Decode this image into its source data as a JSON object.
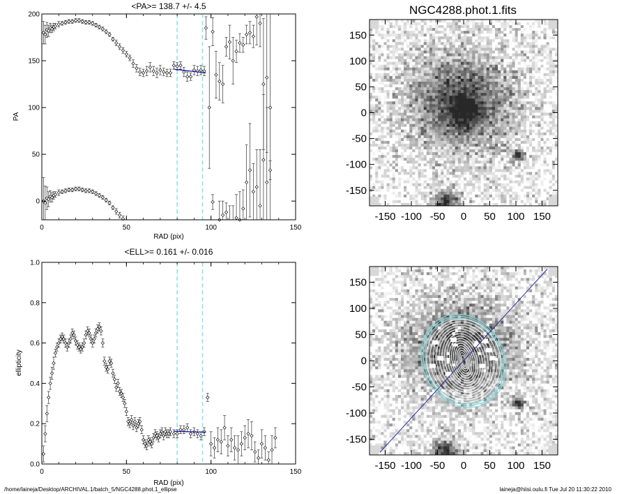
{
  "chart_data": [
    {
      "type": "scatter",
      "title": "<PA>= 138.7 +/-   4.5",
      "xlabel": "RAD (pix)",
      "ylabel": "PA",
      "xlim": [
        0,
        150
      ],
      "ylim": [
        -20,
        200
      ],
      "xticks": [
        "0",
        "50",
        "100",
        "150"
      ],
      "yticks": [
        "0",
        "50",
        "100",
        "150",
        "200"
      ],
      "vlines": [
        80,
        95
      ],
      "fit": {
        "x": [
          78,
          97
        ],
        "y": [
          141,
          137
        ],
        "color": "#1a1aa0"
      },
      "series": [
        {
          "x": [
            1,
            2,
            3,
            4,
            5,
            6,
            7,
            8,
            10,
            12,
            14,
            16,
            18,
            20,
            22,
            24,
            26,
            28,
            30,
            32,
            34,
            36,
            38,
            40,
            42,
            44,
            46,
            48,
            50,
            52,
            54,
            56,
            58,
            60,
            62,
            64,
            66,
            68,
            70,
            72,
            74,
            76
          ],
          "y": [
            180,
            178,
            183,
            182,
            185,
            184,
            186,
            187,
            189,
            190,
            191,
            192,
            192,
            193,
            193,
            192,
            191,
            191,
            190,
            188,
            186,
            184,
            181,
            178,
            173,
            169,
            165,
            161,
            157,
            153,
            147,
            142,
            138,
            137,
            139,
            143,
            139,
            137,
            140,
            138,
            137,
            137
          ],
          "err": [
            12,
            10,
            8,
            6,
            5,
            4,
            4,
            3,
            3,
            2,
            2,
            2,
            2,
            2,
            2,
            2,
            2,
            2,
            2,
            2,
            2,
            2,
            2,
            2,
            2,
            3,
            3,
            3,
            3,
            3,
            4,
            4,
            4,
            4,
            5,
            5,
            5,
            5,
            5,
            4,
            4,
            4
          ]
        },
        {
          "x": [
            78,
            80,
            82,
            84,
            86,
            88,
            90,
            92,
            94,
            96
          ],
          "y": [
            145,
            144,
            145,
            138,
            133,
            133,
            140,
            139,
            140,
            139
          ],
          "err": [
            4,
            4,
            4,
            5,
            5,
            4,
            5,
            5,
            5,
            5
          ]
        },
        {
          "x": [
            97,
            99,
            101,
            103,
            105,
            107,
            109,
            111,
            113,
            115,
            117,
            119,
            121,
            123,
            125,
            127,
            129,
            131,
            133,
            135
          ],
          "y": [
            185,
            100,
            181,
            135,
            128,
            125,
            165,
            170,
            150,
            160,
            169,
            167,
            178,
            180,
            176,
            197,
            190,
            125,
            132,
            100
          ],
          "err": [
            12,
            65,
            15,
            25,
            20,
            20,
            10,
            18,
            25,
            12,
            10,
            8,
            10,
            12,
            12,
            30,
            25,
            70,
            80,
            120
          ]
        },
        {
          "x": [
            1,
            2,
            3,
            4,
            5,
            6,
            7,
            8,
            10,
            12,
            14,
            16,
            18,
            20,
            22,
            24,
            26,
            28,
            30,
            32,
            34,
            36,
            38,
            40,
            42,
            44,
            46,
            48,
            50
          ],
          "y": [
            0,
            -2,
            3,
            2,
            5,
            4,
            6,
            7,
            9,
            10,
            11,
            12,
            12,
            13,
            13,
            12,
            11,
            11,
            10,
            8,
            6,
            4,
            1,
            -2,
            -7,
            -11,
            -15,
            -19,
            -23
          ],
          "err": [
            25,
            18,
            12,
            8,
            6,
            5,
            4,
            3,
            3,
            2,
            2,
            2,
            2,
            2,
            2,
            2,
            2,
            2,
            2,
            2,
            2,
            2,
            2,
            2,
            2,
            3,
            3,
            3,
            3
          ]
        },
        {
          "x": [
            101,
            103,
            105,
            107,
            109,
            111,
            113,
            115,
            117,
            119,
            121,
            123,
            125,
            127,
            129,
            131,
            133,
            135
          ],
          "y": [
            -1,
            -45,
            -20,
            -15,
            -12,
            -25,
            -30,
            -18,
            -20,
            -8,
            20,
            33,
            10,
            15,
            -5,
            44,
            20,
            33
          ],
          "err": [
            8,
            25,
            20,
            15,
            10,
            20,
            25,
            25,
            30,
            20,
            40,
            50,
            30,
            40,
            60,
            70,
            80,
            10
          ]
        }
      ]
    },
    {
      "type": "scatter",
      "title": "<ELL>= 0.161 +/-  0.016",
      "xlabel": "RAD (pix)",
      "ylabel": "ellipticity",
      "xlim": [
        0,
        150
      ],
      "ylim": [
        0,
        1
      ],
      "xticks": [
        "0",
        "50",
        "100",
        "150"
      ],
      "yticks": [
        "0.0",
        "0.2",
        "0.4",
        "0.6",
        "0.8",
        "1.0"
      ],
      "vlines": [
        80,
        95
      ],
      "fit": {
        "x": [
          78,
          97
        ],
        "y": [
          0.162,
          0.158
        ],
        "color": "#1a1aa0"
      },
      "series": [
        {
          "x": [
            1,
            2,
            3,
            4,
            5,
            6,
            7,
            8,
            9,
            10,
            11,
            12,
            13,
            14,
            15,
            16,
            17,
            18,
            19,
            20,
            21,
            22,
            23,
            24,
            25,
            26,
            27,
            28,
            29,
            30,
            31,
            32,
            33,
            34,
            35,
            36
          ],
          "y": [
            0.05,
            0.15,
            0.25,
            0.33,
            0.4,
            0.45,
            0.5,
            0.55,
            0.58,
            0.6,
            0.62,
            0.63,
            0.62,
            0.6,
            0.58,
            0.6,
            0.62,
            0.65,
            0.64,
            0.61,
            0.59,
            0.58,
            0.57,
            0.58,
            0.6,
            0.64,
            0.66,
            0.65,
            0.62,
            0.6,
            0.62,
            0.65,
            0.67,
            0.68,
            0.66,
            0.6
          ],
          "err": [
            0.04,
            0.04,
            0.04,
            0.03,
            0.03,
            0.03,
            0.03,
            0.02,
            0.02,
            0.02,
            0.02,
            0.02,
            0.02,
            0.02,
            0.02,
            0.02,
            0.02,
            0.02,
            0.02,
            0.02,
            0.02,
            0.02,
            0.02,
            0.02,
            0.02,
            0.02,
            0.02,
            0.02,
            0.02,
            0.02,
            0.02,
            0.02,
            0.02,
            0.02,
            0.02,
            0.02
          ]
        },
        {
          "x": [
            37,
            38,
            39,
            40,
            41,
            42,
            43,
            44,
            45,
            46,
            47,
            48,
            49,
            50,
            51,
            52,
            53,
            54,
            55,
            56,
            57,
            58,
            59,
            60,
            61,
            62,
            63,
            64,
            65,
            66,
            67,
            68,
            69,
            70,
            71,
            72,
            73,
            74,
            75,
            76
          ],
          "y": [
            0.51,
            0.48,
            0.47,
            0.51,
            0.5,
            0.45,
            0.42,
            0.38,
            0.4,
            0.36,
            0.35,
            0.33,
            0.3,
            0.26,
            0.21,
            0.2,
            0.22,
            0.19,
            0.21,
            0.18,
            0.2,
            0.21,
            0.17,
            0.12,
            0.1,
            0.09,
            0.12,
            0.11,
            0.1,
            0.13,
            0.15,
            0.14,
            0.13,
            0.15,
            0.16,
            0.14,
            0.16,
            0.15,
            0.15,
            0.16
          ],
          "err": [
            0.02,
            0.02,
            0.02,
            0.02,
            0.02,
            0.02,
            0.02,
            0.02,
            0.02,
            0.02,
            0.02,
            0.02,
            0.02,
            0.02,
            0.02,
            0.02,
            0.02,
            0.02,
            0.02,
            0.02,
            0.02,
            0.02,
            0.02,
            0.02,
            0.02,
            0.02,
            0.02,
            0.02,
            0.02,
            0.02,
            0.02,
            0.02,
            0.02,
            0.02,
            0.02,
            0.02,
            0.02,
            0.02,
            0.02,
            0.02
          ]
        },
        {
          "x": [
            78,
            80,
            82,
            84,
            86,
            88,
            90,
            92,
            94,
            96
          ],
          "y": [
            0.15,
            0.15,
            0.17,
            0.17,
            0.18,
            0.15,
            0.16,
            0.15,
            0.14,
            0.16
          ],
          "err": [
            0.02,
            0.02,
            0.02,
            0.02,
            0.02,
            0.02,
            0.02,
            0.02,
            0.02,
            0.02
          ]
        },
        {
          "x": [
            98,
            100,
            102,
            104,
            106,
            108,
            110,
            112,
            114,
            116,
            118,
            120,
            122,
            124,
            126,
            128,
            130,
            132,
            134,
            136,
            138
          ],
          "y": [
            0.33,
            0.1,
            0.08,
            0.12,
            0.11,
            0.18,
            0.09,
            0.12,
            0.08,
            0.07,
            0.1,
            0.13,
            0.15,
            0.14,
            0.06,
            0.03,
            0.1,
            0.08,
            0.02,
            0.07,
            0.13
          ],
          "err": [
            0.02,
            0.06,
            0.05,
            0.06,
            0.06,
            0.06,
            0.05,
            0.06,
            0.06,
            0.07,
            0.06,
            0.06,
            0.07,
            0.07,
            0.05,
            0.04,
            0.07,
            0.06,
            0.04,
            0.07,
            0.05
          ]
        }
      ]
    },
    {
      "type": "heatmap",
      "title": "NGC4288.phot.1.fits",
      "xlim": [
        -180,
        180
      ],
      "ylim": [
        -180,
        180
      ],
      "xticks": [
        "-150",
        "-100",
        "-50",
        "0",
        "50",
        "100",
        "150"
      ],
      "yticks": [
        "-150",
        "-100",
        "-50",
        "0",
        "50",
        "100",
        "150"
      ],
      "sources": [
        {
          "x": -5,
          "y": 20,
          "sigma": 70,
          "amp": 0.75
        },
        {
          "x": 0,
          "y": 5,
          "sigma": 22,
          "amp": 0.55
        },
        {
          "x": 105,
          "y": -83,
          "sigma": 7,
          "amp": 1.1
        },
        {
          "x": -35,
          "y": -175,
          "sigma": 18,
          "amp": 0.9
        }
      ]
    },
    {
      "type": "heatmap",
      "xlim": [
        -180,
        180
      ],
      "ylim": [
        -180,
        180
      ],
      "xticks": [
        "-150",
        "-100",
        "-50",
        "0",
        "50",
        "100",
        "150"
      ],
      "yticks": [
        "-150",
        "-100",
        "-50",
        "0",
        "50",
        "100",
        "150"
      ],
      "sources": [
        {
          "x": -5,
          "y": 20,
          "sigma": 70,
          "amp": 0.75
        },
        {
          "x": 105,
          "y": -83,
          "sigma": 7,
          "amp": 1.1
        },
        {
          "x": -35,
          "y": -175,
          "sigma": 18,
          "amp": 0.9
        }
      ],
      "axis_line": {
        "x": [
          -160,
          160
        ],
        "y": [
          -175,
          175
        ],
        "color": "#2a2aa0"
      },
      "contour_color": "#7fd8dc"
    }
  ],
  "footer": {
    "left": "/home/laineja/Desktop/ARCHIVAL.1/batch_5/NGC4288.phot.1_ellipse",
    "right": "laineja@hiisi.oulu.fi  Tue Jul 20 11:30:22 2010"
  }
}
